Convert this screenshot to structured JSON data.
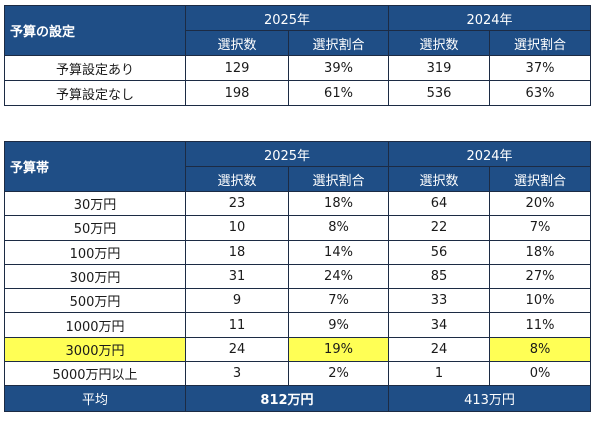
{
  "colors": {
    "header_bg": "#1f4e86",
    "highlight": "#ffff55",
    "border": "#1c2b44"
  },
  "table1": {
    "title": "予算の設定",
    "year_a": "2025年",
    "year_b": "2024年",
    "sub": [
      "選択数",
      "選択割合",
      "選択数",
      "選択割合"
    ],
    "rows": [
      {
        "label": "予算設定あり",
        "cells": [
          "129",
          "39%",
          "319",
          "37%"
        ]
      },
      {
        "label": "予算設定なし",
        "cells": [
          "198",
          "61%",
          "536",
          "63%"
        ]
      }
    ]
  },
  "table2": {
    "title": "予算帯",
    "year_a": "2025年",
    "year_b": "2024年",
    "sub": [
      "選択数",
      "選択割合",
      "選択数",
      "選択割合"
    ],
    "rows": [
      {
        "label": "30万円",
        "cells": [
          "23",
          "18%",
          "64",
          "20%"
        ]
      },
      {
        "label": "50万円",
        "cells": [
          "10",
          "8%",
          "22",
          "7%"
        ]
      },
      {
        "label": "100万円",
        "cells": [
          "18",
          "14%",
          "56",
          "18%"
        ]
      },
      {
        "label": "300万円",
        "cells": [
          "31",
          "24%",
          "85",
          "27%"
        ]
      },
      {
        "label": "500万円",
        "cells": [
          "9",
          "7%",
          "33",
          "10%"
        ]
      },
      {
        "label": "1000万円",
        "cells": [
          "11",
          "9%",
          "34",
          "11%"
        ]
      },
      {
        "label": "3000万円",
        "cells": [
          "24",
          "19%",
          "24",
          "8%"
        ]
      },
      {
        "label": "5000万円以上",
        "cells": [
          "3",
          "2%",
          "1",
          "0%"
        ]
      }
    ],
    "avg": {
      "label": "平均",
      "val_a": "812万円",
      "val_b": "413万円"
    }
  }
}
